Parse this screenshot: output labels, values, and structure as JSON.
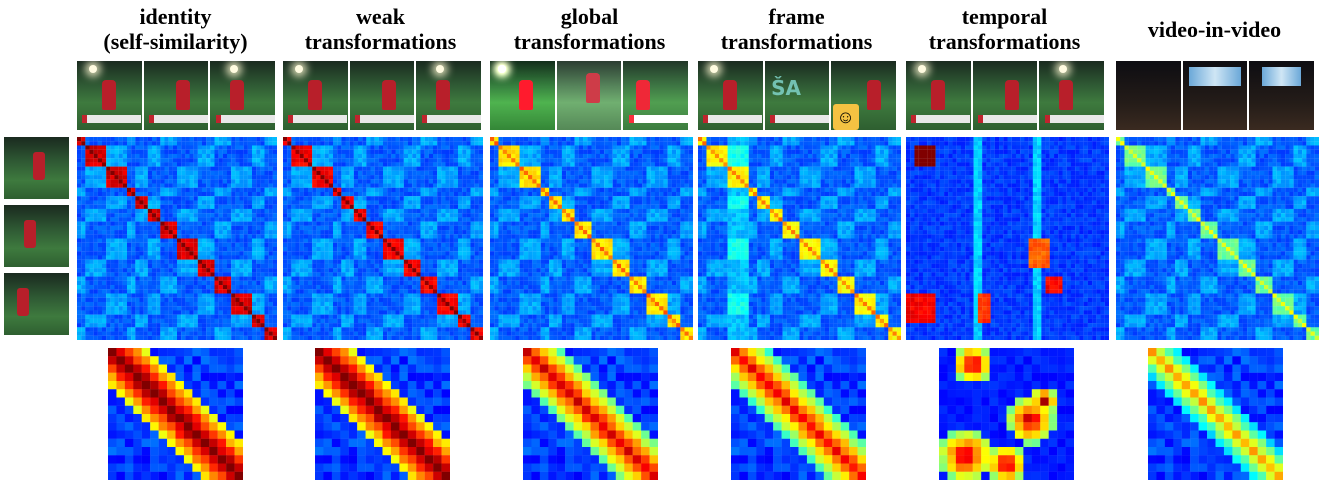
{
  "columns": [
    {
      "id": "identity",
      "title_lines": [
        "identity",
        "(self-similarity)"
      ],
      "pattern": "identity"
    },
    {
      "id": "weak",
      "title_lines": [
        "weak",
        "transformations"
      ],
      "pattern": "weak"
    },
    {
      "id": "global",
      "title_lines": [
        "global",
        "transformations"
      ],
      "pattern": "global"
    },
    {
      "id": "frame",
      "title_lines": [
        "frame",
        "transformations"
      ],
      "pattern": "frame"
    },
    {
      "id": "temporal",
      "title_lines": [
        "temporal",
        "transformations"
      ],
      "pattern": "temporal"
    },
    {
      "id": "video-in-video",
      "title_lines": [
        "video-in-video"
      ],
      "pattern": "vinv"
    }
  ],
  "frame_overlay_text": "ŠA",
  "colormap": "jet"
}
